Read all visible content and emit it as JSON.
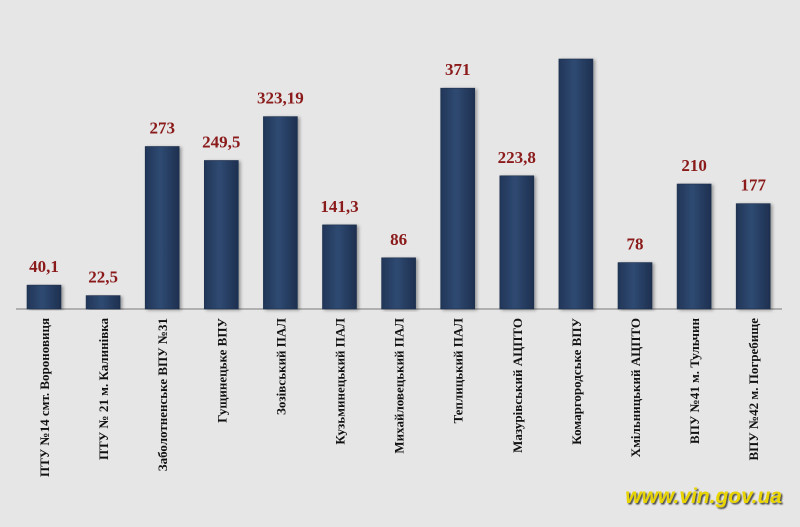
{
  "chart_data": {
    "type": "bar",
    "categories": [
      "ПТУ №14 смт. Вороновиця",
      "ПТУ № 21 м. Калинівка",
      "Заболотненське ВПУ №31",
      "Гущинецьке ВПУ",
      "Зозівський ПАЛ",
      "Кузьминецький ПАЛ",
      "Михайловецький ПАЛ",
      "Теплицький ПАЛ",
      "Мазурівський АЦПТО",
      "Комаргородське ВПУ",
      "Хмільницький АЦПТО",
      "ВПУ №41 м. Тульчин",
      "ВПУ №42 м. Погребище"
    ],
    "values": [
      40.1,
      22.5,
      273,
      249.5,
      323.19,
      141.3,
      86,
      371,
      223.8,
      420,
      78,
      210,
      177
    ],
    "data_labels": [
      "40,1",
      "22,5",
      "273",
      "249,5",
      "323,19",
      "141,3",
      "86",
      "371",
      "223,8",
      "",
      "78",
      "210",
      "177"
    ],
    "ylim": [
      0,
      420
    ],
    "grid": false,
    "legend": "none",
    "colors": {
      "bar": "#2b4266",
      "bar_edge": "#1c2e4a",
      "label": "#8b1a1a",
      "background": "#e6e6e6",
      "watermark": "#e8d400"
    }
  },
  "watermark": "www.vin.gov.ua"
}
